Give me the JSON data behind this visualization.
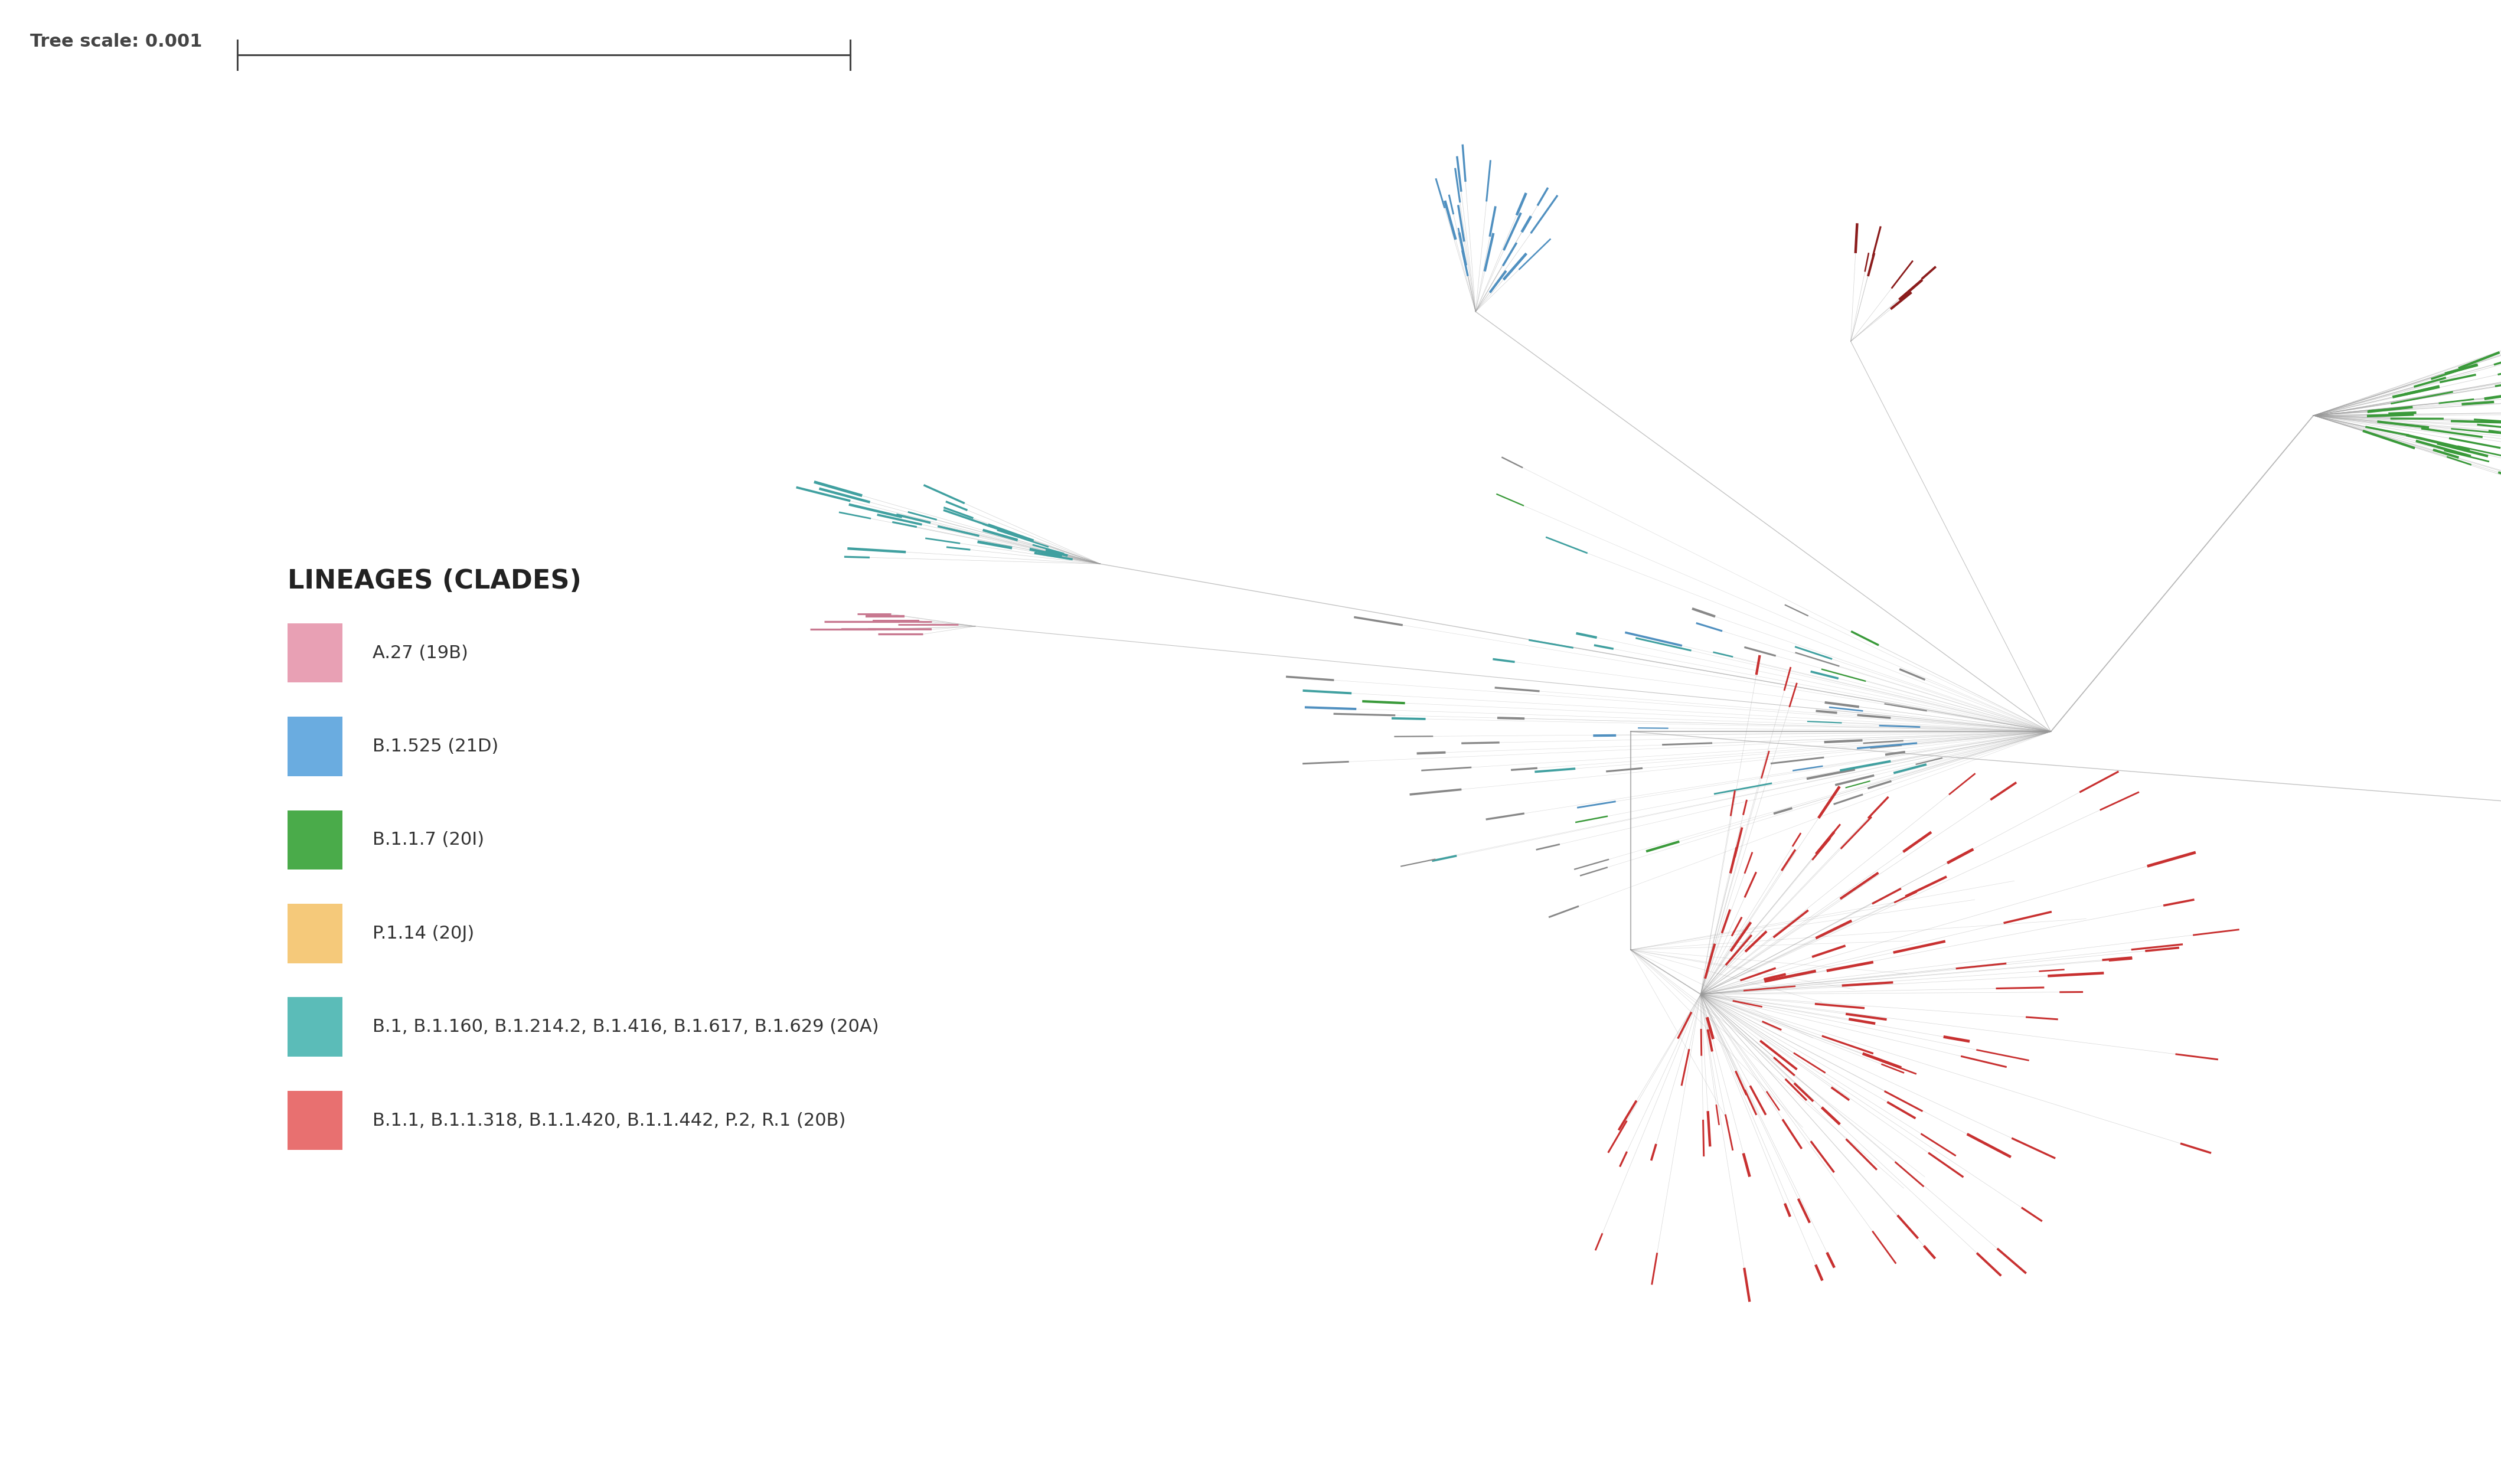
{
  "background_color": "#ffffff",
  "tree_scale_label": "Tree scale: 0.001",
  "legend_title": "LINEAGES (CLADES)",
  "legend_entries": [
    {
      "label": "A.27 (19B)",
      "color": "#e8a0b4"
    },
    {
      "label": "B.1.525 (21D)",
      "color": "#6aace0"
    },
    {
      "label": "B.1.1.7 (20I)",
      "color": "#4aab4a"
    },
    {
      "label": "P.1.14 (20J)",
      "color": "#f5c97a"
    },
    {
      "label": "B.1, B.1.160, B.1.214.2, B.1.416, B.1.617, B.1.629 (20A)",
      "color": "#5bbcb8"
    },
    {
      "label": "B.1.1, B.1.1.318, B.1.1.420, B.1.1.442, P.2, R.1 (20B)",
      "color": "#e87070"
    }
  ],
  "colors": {
    "A27": "#c87890",
    "B1525": "#5090c0",
    "B117": "#3a9a3a",
    "P114": "#e0a840",
    "B1_20A": "#40a0a0",
    "B11_20B": "#c83030",
    "outgroup": "#a05010",
    "branch": "#999999"
  },
  "fig_width": 42.36,
  "fig_height": 25.14
}
